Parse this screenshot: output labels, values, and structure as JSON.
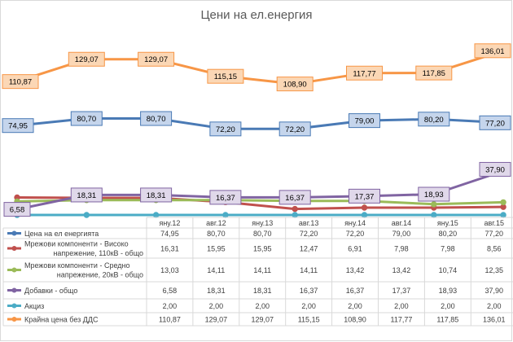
{
  "chart_data": {
    "type": "line",
    "title": "Цени на ел.енергия",
    "categories": [
      "яну.12",
      "авг.12",
      "яну.13",
      "авг.13",
      "яну.14",
      "авг.14",
      "яну.15",
      "авг.15"
    ],
    "ylim": [
      0,
      140
    ],
    "grid": false,
    "legend": "data-table",
    "series": [
      {
        "name": "Цена на ел енергията",
        "color": "#4a7ab5",
        "label_fill": "#c5d5ec",
        "values": [
          74.95,
          80.7,
          80.7,
          72.2,
          72.2,
          79.0,
          80.2,
          77.2
        ],
        "display": [
          "74,95",
          "80,70",
          "80,70",
          "72,20",
          "72,20",
          "79,00",
          "80,20",
          "77,20"
        ]
      },
      {
        "name": "Мрежови компоненти - Високо напрежение, 110кВ - общо",
        "color": "#c0504d",
        "values": [
          16.31,
          15.95,
          15.95,
          12.47,
          6.91,
          7.98,
          7.98,
          8.56
        ],
        "display": [
          "16,31",
          "15,95",
          "15,95",
          "12,47",
          "6,91",
          "7,98",
          "7,98",
          "8,56"
        ]
      },
      {
        "name": "Мрежови компоненти - Средно напрежение, 20кВ - общо",
        "color": "#9bbb59",
        "values": [
          13.03,
          14.11,
          14.11,
          14.11,
          13.42,
          13.42,
          10.74,
          12.35
        ],
        "display": [
          "13,03",
          "14,11",
          "14,11",
          "14,11",
          "13,42",
          "13,42",
          "10,74",
          "12,35"
        ]
      },
      {
        "name": "Добавки - общо",
        "color": "#8064a2",
        "label_fill": "#e0d8ea",
        "values": [
          6.58,
          18.31,
          18.31,
          16.37,
          16.37,
          17.37,
          18.93,
          37.9
        ],
        "display": [
          "6,58",
          "18,31",
          "18,31",
          "16,37",
          "16,37",
          "17,37",
          "18,93",
          "37,90"
        ]
      },
      {
        "name": "Акциз",
        "color": "#4bacc6",
        "values": [
          2.0,
          2.0,
          2.0,
          2.0,
          2.0,
          2.0,
          2.0,
          2.0
        ],
        "display": [
          "2,00",
          "2,00",
          "2,00",
          "2,00",
          "2,00",
          "2,00",
          "2,00",
          "2,00"
        ]
      },
      {
        "name": "Крайна цена без ДДС",
        "color": "#f79646",
        "label_fill": "#fbd7b5",
        "values": [
          110.87,
          129.07,
          129.07,
          115.15,
          108.9,
          117.77,
          117.85,
          136.01
        ],
        "display": [
          "110,87",
          "129,07",
          "129,07",
          "115,15",
          "108,90",
          "117,77",
          "117,85",
          "136,01"
        ]
      }
    ]
  }
}
